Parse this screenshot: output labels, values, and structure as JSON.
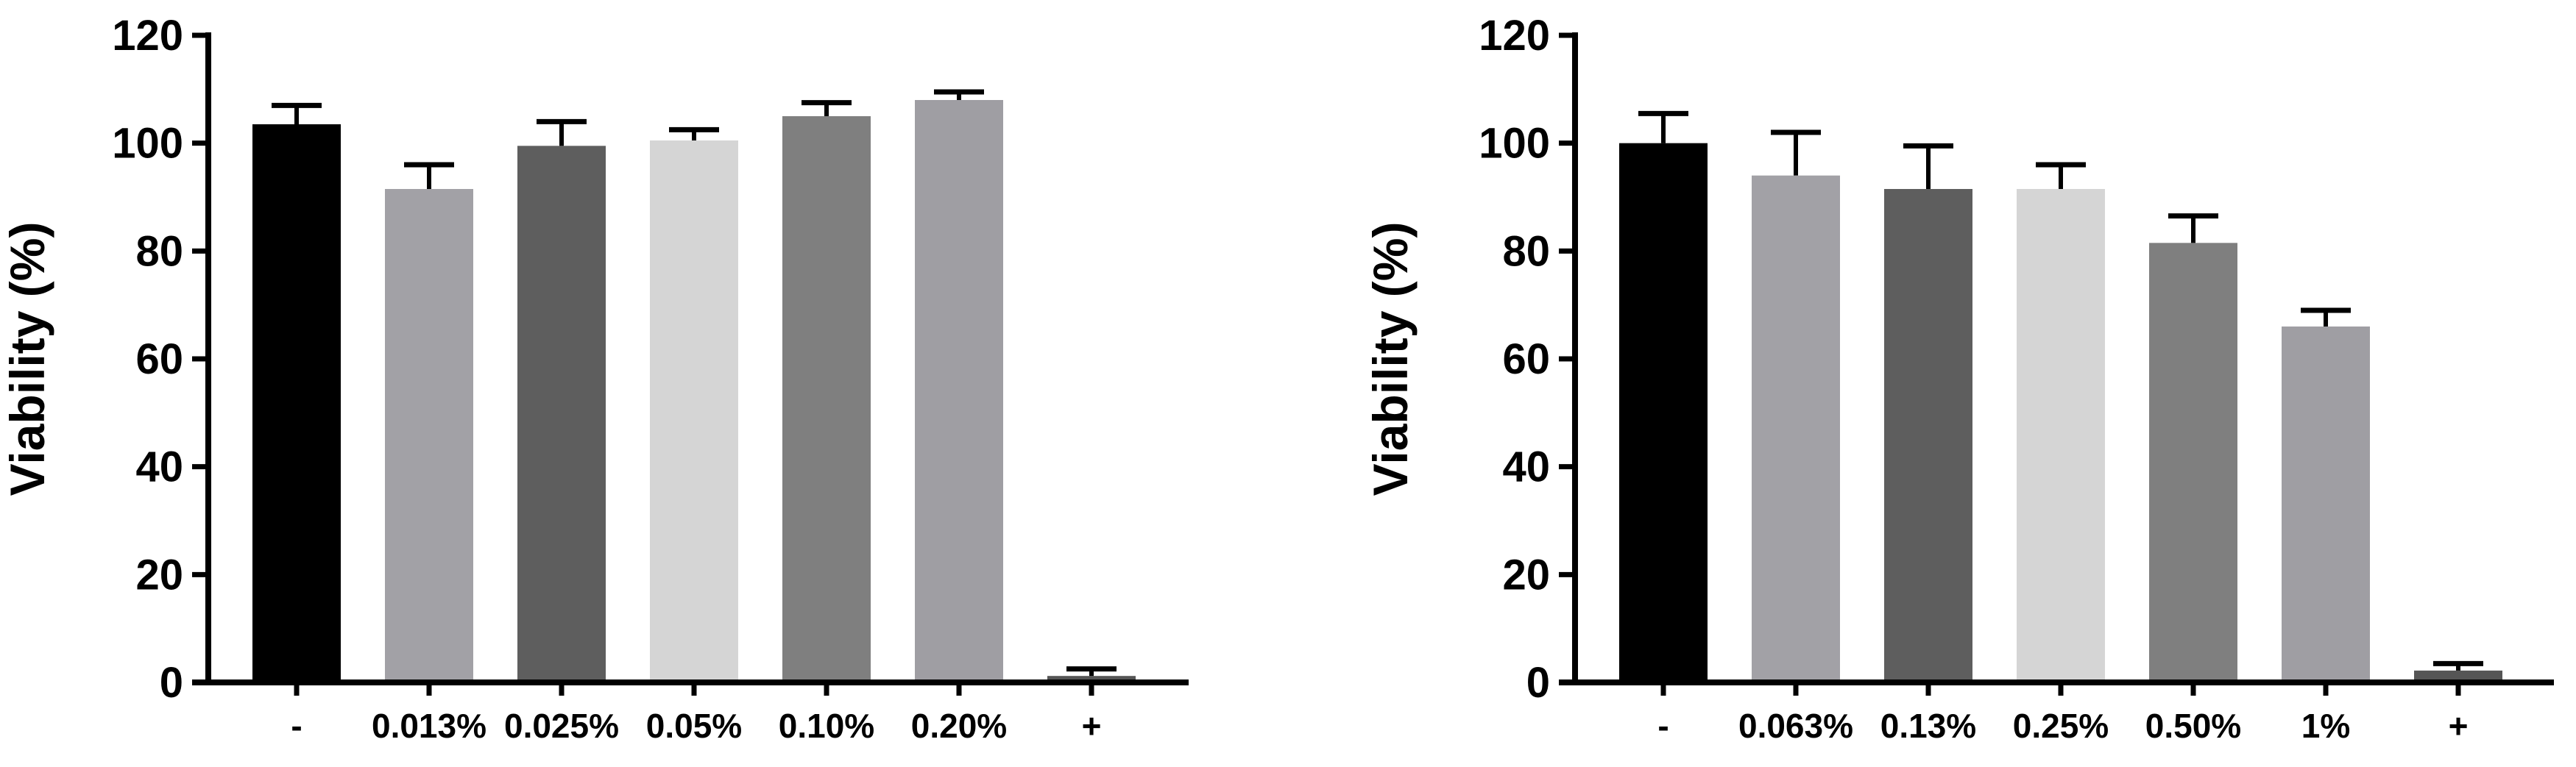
{
  "chart_data": [
    {
      "type": "bar",
      "ylabel": "Viability (%)",
      "ylim": [
        0,
        120
      ],
      "yticks": [
        0,
        20,
        40,
        60,
        80,
        100,
        120
      ],
      "grid": false,
      "categories": [
        "-",
        "0.013%",
        "0.025%",
        "0.05%",
        "0.10%",
        "0.20%",
        "+"
      ],
      "values": [
        103.5,
        91.5,
        99.5,
        100.5,
        105,
        108,
        1.2
      ],
      "errors": [
        3.5,
        4.5,
        4.5,
        2,
        2.5,
        1.5,
        1.3
      ],
      "colors": [
        "#000000",
        "#a2a1a6",
        "#5e5e5e",
        "#d5d5d5",
        "#7f7f7f",
        "#9f9ea3",
        "#555555"
      ]
    },
    {
      "type": "bar",
      "ylabel": "Viability (%)",
      "ylim": [
        0,
        120
      ],
      "yticks": [
        0,
        20,
        40,
        60,
        80,
        100,
        120
      ],
      "grid": false,
      "categories": [
        "-",
        "0.063%",
        "0.13%",
        "0.25%",
        "0.50%",
        "1%",
        "+"
      ],
      "values": [
        100,
        94,
        91.5,
        91.5,
        81.5,
        66,
        2.2
      ],
      "errors": [
        5.5,
        8,
        8,
        4.5,
        5,
        3,
        1.3
      ],
      "colors": [
        "#000000",
        "#a2a1a6",
        "#5e5e5e",
        "#d5d5d5",
        "#7f7f7f",
        "#9f9ea3",
        "#555555"
      ]
    }
  ]
}
